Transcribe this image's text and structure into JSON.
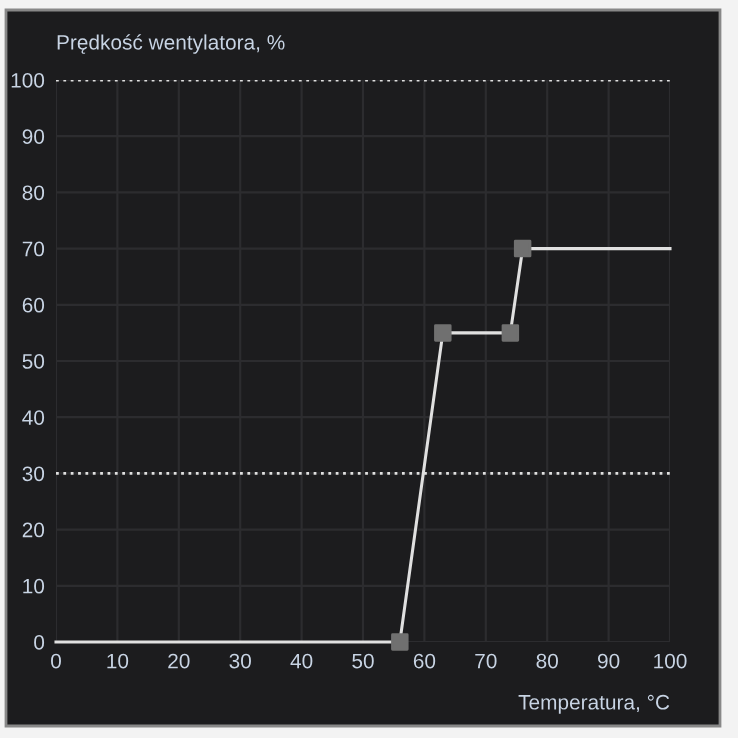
{
  "chart_data": {
    "type": "line",
    "title": "Prędkość wentylatora, %",
    "xlabel": "Temperatura, °C",
    "series": [
      {
        "color": "#e0e0e0",
        "x": [
          0,
          56,
          63,
          74,
          76,
          100
        ],
        "values": [
          0,
          0,
          55,
          55,
          70,
          70
        ],
        "marker": "none"
      },
      {
        "type": "scatter",
        "color": "#707070",
        "x": [
          56,
          63,
          74,
          76
        ],
        "values": [
          0,
          55,
          55,
          70
        ],
        "marker": "square"
      }
    ],
    "xlim": [
      0,
      100
    ],
    "ylim": [
      0,
      100
    ],
    "xticks": [
      0,
      10,
      20,
      30,
      40,
      50,
      60,
      70,
      80,
      90,
      100
    ],
    "yticks": [
      0,
      10,
      20,
      30,
      40,
      50,
      60,
      70,
      80,
      90,
      100
    ],
    "grid": true,
    "ref_lines": [
      {
        "axis": "y",
        "value": 100,
        "color": "#e0e0e0",
        "line_style": "dotted"
      },
      {
        "axis": "y",
        "value": 30,
        "color": "#e0e0e0",
        "line_style": "dotted"
      }
    ]
  }
}
